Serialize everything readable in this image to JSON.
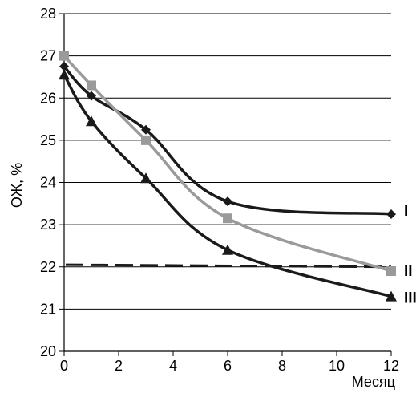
{
  "chart_data": {
    "type": "line",
    "xlabel": "Месяц",
    "ylabel": "ОЖ, %",
    "xlim": [
      0,
      12
    ],
    "ylim": [
      20,
      28
    ],
    "xticks": [
      0,
      2,
      4,
      6,
      8,
      10,
      12
    ],
    "yticks": [
      20,
      21,
      22,
      23,
      24,
      25,
      26,
      27,
      28
    ],
    "grid": "horizontal",
    "series": [
      {
        "name": "I",
        "color": "#1a1a1a",
        "marker": "diamond",
        "x": [
          0,
          1,
          3,
          6,
          12
        ],
        "y": [
          26.75,
          26.05,
          25.25,
          23.55,
          23.25
        ]
      },
      {
        "name": "II",
        "color": "#9a9a9a",
        "marker": "square",
        "x": [
          0,
          1,
          3,
          6,
          12
        ],
        "y": [
          27.0,
          26.3,
          25.0,
          23.15,
          21.9
        ]
      },
      {
        "name": "III",
        "color": "#1a1a1a",
        "marker": "triangle",
        "x": [
          0,
          1,
          3,
          6,
          12
        ],
        "y": [
          26.55,
          25.45,
          24.1,
          22.4,
          21.3
        ]
      }
    ],
    "reference_line": {
      "style": "dashed",
      "color": "#1a1a1a",
      "y": [
        22.05,
        22.0
      ],
      "x": [
        0,
        12
      ]
    }
  }
}
